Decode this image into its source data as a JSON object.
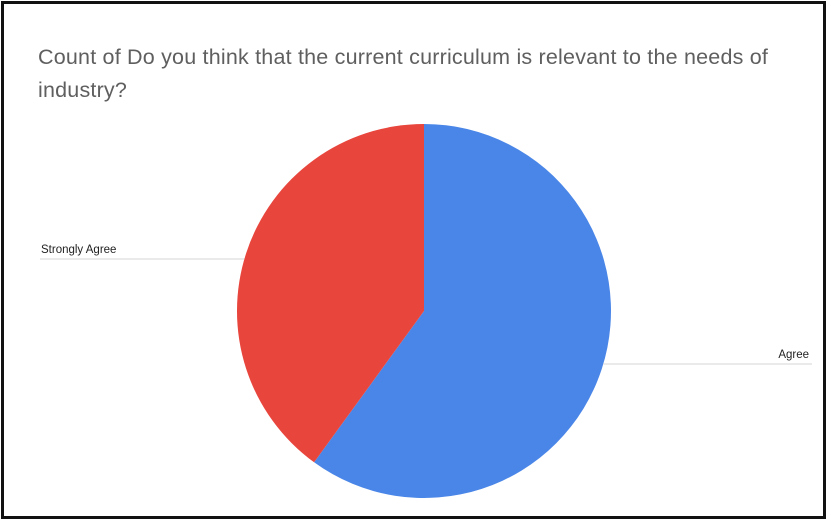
{
  "chart_data": {
    "type": "pie",
    "title": "Count of Do you think that the current curriculum is relevant to the needs of industry?",
    "slices": [
      {
        "label": "Agree",
        "value": 60,
        "value_label": "",
        "color": "#4a86e8"
      },
      {
        "label": "Strongly Agree",
        "value": 40,
        "value_label": "",
        "color": "#e8453c"
      }
    ],
    "legend": "labels beside slices"
  }
}
